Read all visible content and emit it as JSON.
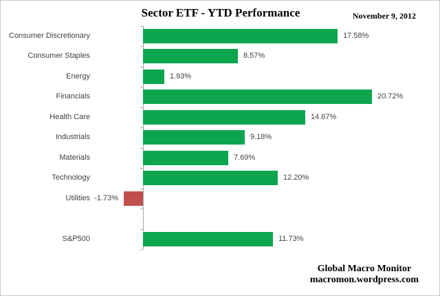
{
  "header": {
    "title": "Sector ETF - YTD Performance",
    "date": "November 9, 2012"
  },
  "footer": {
    "brand": "Global Macro Monitor",
    "url": "macromon.wordpress.com"
  },
  "colors": {
    "positive_bar": "#0da64f",
    "negative_bar": "#c0504d",
    "axis": "#a6a6a6",
    "label_text": "#3f3f3f"
  },
  "chart_data": {
    "type": "bar",
    "orientation": "horizontal",
    "title": "Sector ETF - YTD Performance",
    "xlabel": "",
    "ylabel": "",
    "grid": false,
    "legend": false,
    "xlim": [
      -4.5,
      26
    ],
    "categories": [
      "Consumer Discretionary",
      "Consumer Staples",
      "Energy",
      "Financials",
      "Health Care",
      "Industrials",
      "Materials",
      "Technology",
      "Utilities",
      "",
      "S&P500"
    ],
    "values": [
      17.58,
      8.57,
      1.93,
      20.72,
      14.67,
      9.18,
      7.69,
      12.2,
      -1.73,
      null,
      11.73
    ],
    "value_labels": [
      "17.58%",
      "8.57%",
      "1.93%",
      "20.72%",
      "14.67%",
      "9.18%",
      "7.69%",
      "12.20%",
      "-1.73%",
      "",
      "11.73%"
    ]
  }
}
